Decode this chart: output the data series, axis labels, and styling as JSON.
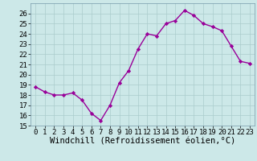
{
  "x": [
    0,
    1,
    2,
    3,
    4,
    5,
    6,
    7,
    8,
    9,
    10,
    11,
    12,
    13,
    14,
    15,
    16,
    17,
    18,
    19,
    20,
    21,
    22,
    23
  ],
  "y": [
    18.8,
    18.3,
    18.0,
    18.0,
    18.2,
    17.5,
    16.2,
    15.5,
    17.0,
    19.2,
    20.4,
    22.5,
    24.0,
    23.8,
    25.0,
    25.3,
    26.3,
    25.8,
    25.0,
    24.7,
    24.3,
    22.8,
    21.3,
    21.1
  ],
  "line_color": "#990099",
  "marker": "D",
  "marker_size": 2.2,
  "bg_color": "#cce8e8",
  "grid_color": "#aacccc",
  "xlabel": "Windchill (Refroidissement éolien,°C)",
  "xlabel_fontsize": 7.5,
  "ylim": [
    15,
    27
  ],
  "ytick_min": 15,
  "ytick_max": 26,
  "xticks": [
    0,
    1,
    2,
    3,
    4,
    5,
    6,
    7,
    8,
    9,
    10,
    11,
    12,
    13,
    14,
    15,
    16,
    17,
    18,
    19,
    20,
    21,
    22,
    23
  ],
  "tick_fontsize": 6.5,
  "linewidth": 1.0
}
